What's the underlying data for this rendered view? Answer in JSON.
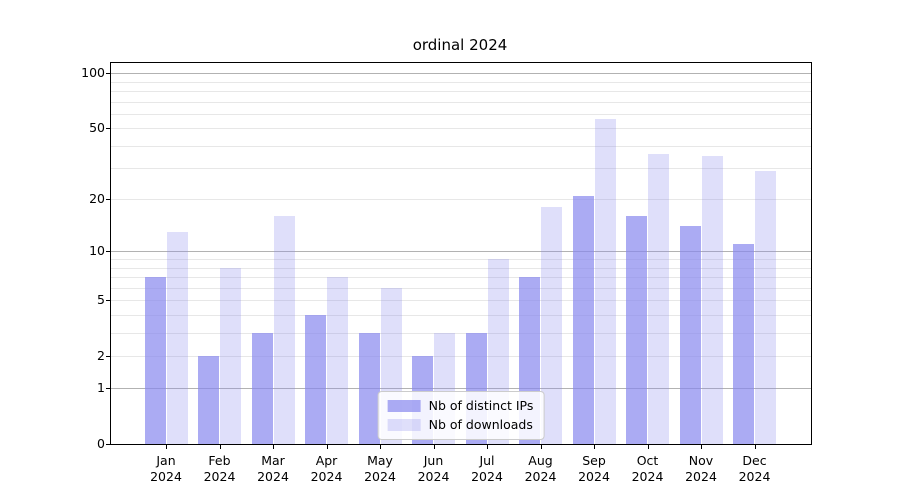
{
  "title": "ordinal 2024",
  "chart_data": {
    "type": "bar",
    "title": "ordinal 2024",
    "categories": [
      "Jan 2024",
      "Feb 2024",
      "Mar 2024",
      "Apr 2024",
      "May 2024",
      "Jun 2024",
      "Jul 2024",
      "Aug 2024",
      "Sep 2024",
      "Oct 2024",
      "Nov 2024",
      "Dec 2024"
    ],
    "series": [
      {
        "name": "Nb of distinct IPs",
        "color": "rgba(136,136,238,0.7)",
        "values": [
          7,
          2,
          3,
          4,
          3,
          2,
          3,
          7,
          21,
          16,
          14,
          11
        ]
      },
      {
        "name": "Nb of downloads",
        "color": "rgba(136,136,238,0.27)",
        "values": [
          13,
          8,
          16,
          7,
          6,
          3,
          9,
          18,
          56,
          36,
          35,
          29
        ]
      }
    ],
    "yscale": "log1p",
    "ylim": [
      0,
      115
    ],
    "y_ticks": [
      0,
      1,
      2,
      5,
      10,
      20,
      50,
      100
    ],
    "y_major_gridlines": [
      1,
      10,
      100
    ],
    "y_minor_gridlines": [
      2,
      3,
      4,
      5,
      6,
      7,
      8,
      9,
      20,
      30,
      40,
      50,
      60,
      70,
      80,
      90
    ],
    "xlabel": "",
    "ylabel": "",
    "grid": true,
    "legend_position": "lower center",
    "axis_color": "#000000",
    "major_grid_color": "#b2b2b2",
    "minor_grid_color": "#e7e7e7",
    "background_color": "#ffffff"
  }
}
